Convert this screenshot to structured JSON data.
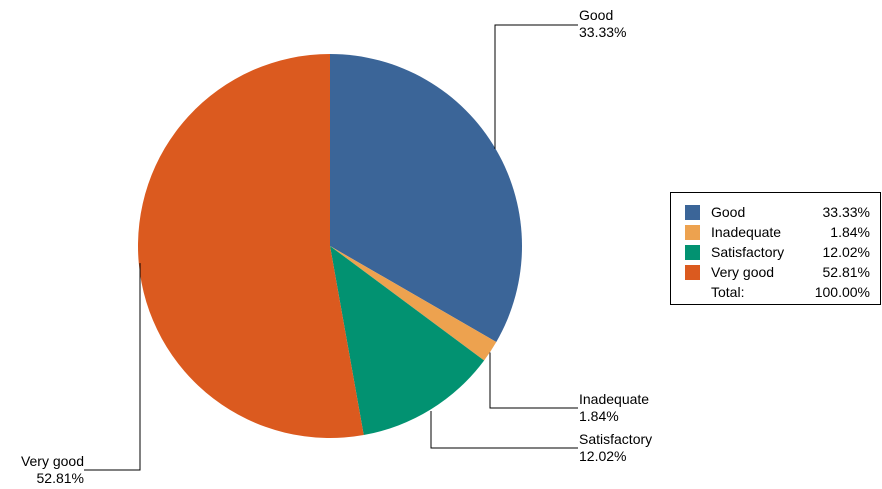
{
  "chart_data": {
    "type": "pie",
    "slices": [
      {
        "label": "Good",
        "value": 33.33,
        "display": "33.33%",
        "color": "#3b6598"
      },
      {
        "label": "Inadequate",
        "value": 1.84,
        "display": "1.84%",
        "color": "#eda24f"
      },
      {
        "label": "Satisfactory",
        "value": 12.02,
        "display": "12.02%",
        "color": "#029271"
      },
      {
        "label": "Very good",
        "value": 52.81,
        "display": "52.81%",
        "color": "#db5a1f"
      }
    ],
    "start_angle": "12 o'clock",
    "direction": "clockwise",
    "legend_placement": "right"
  },
  "legend": {
    "rows": [
      {
        "name": "Good",
        "value": "33.33%",
        "color": "#3b6598"
      },
      {
        "name": "Inadequate",
        "value": "1.84%",
        "color": "#eda24f"
      },
      {
        "name": "Satisfactory",
        "value": "12.02%",
        "color": "#029271"
      },
      {
        "name": "Very good",
        "value": "52.81%",
        "color": "#db5a1f"
      }
    ],
    "total_label": "Total:",
    "total_value": "100.00%"
  }
}
